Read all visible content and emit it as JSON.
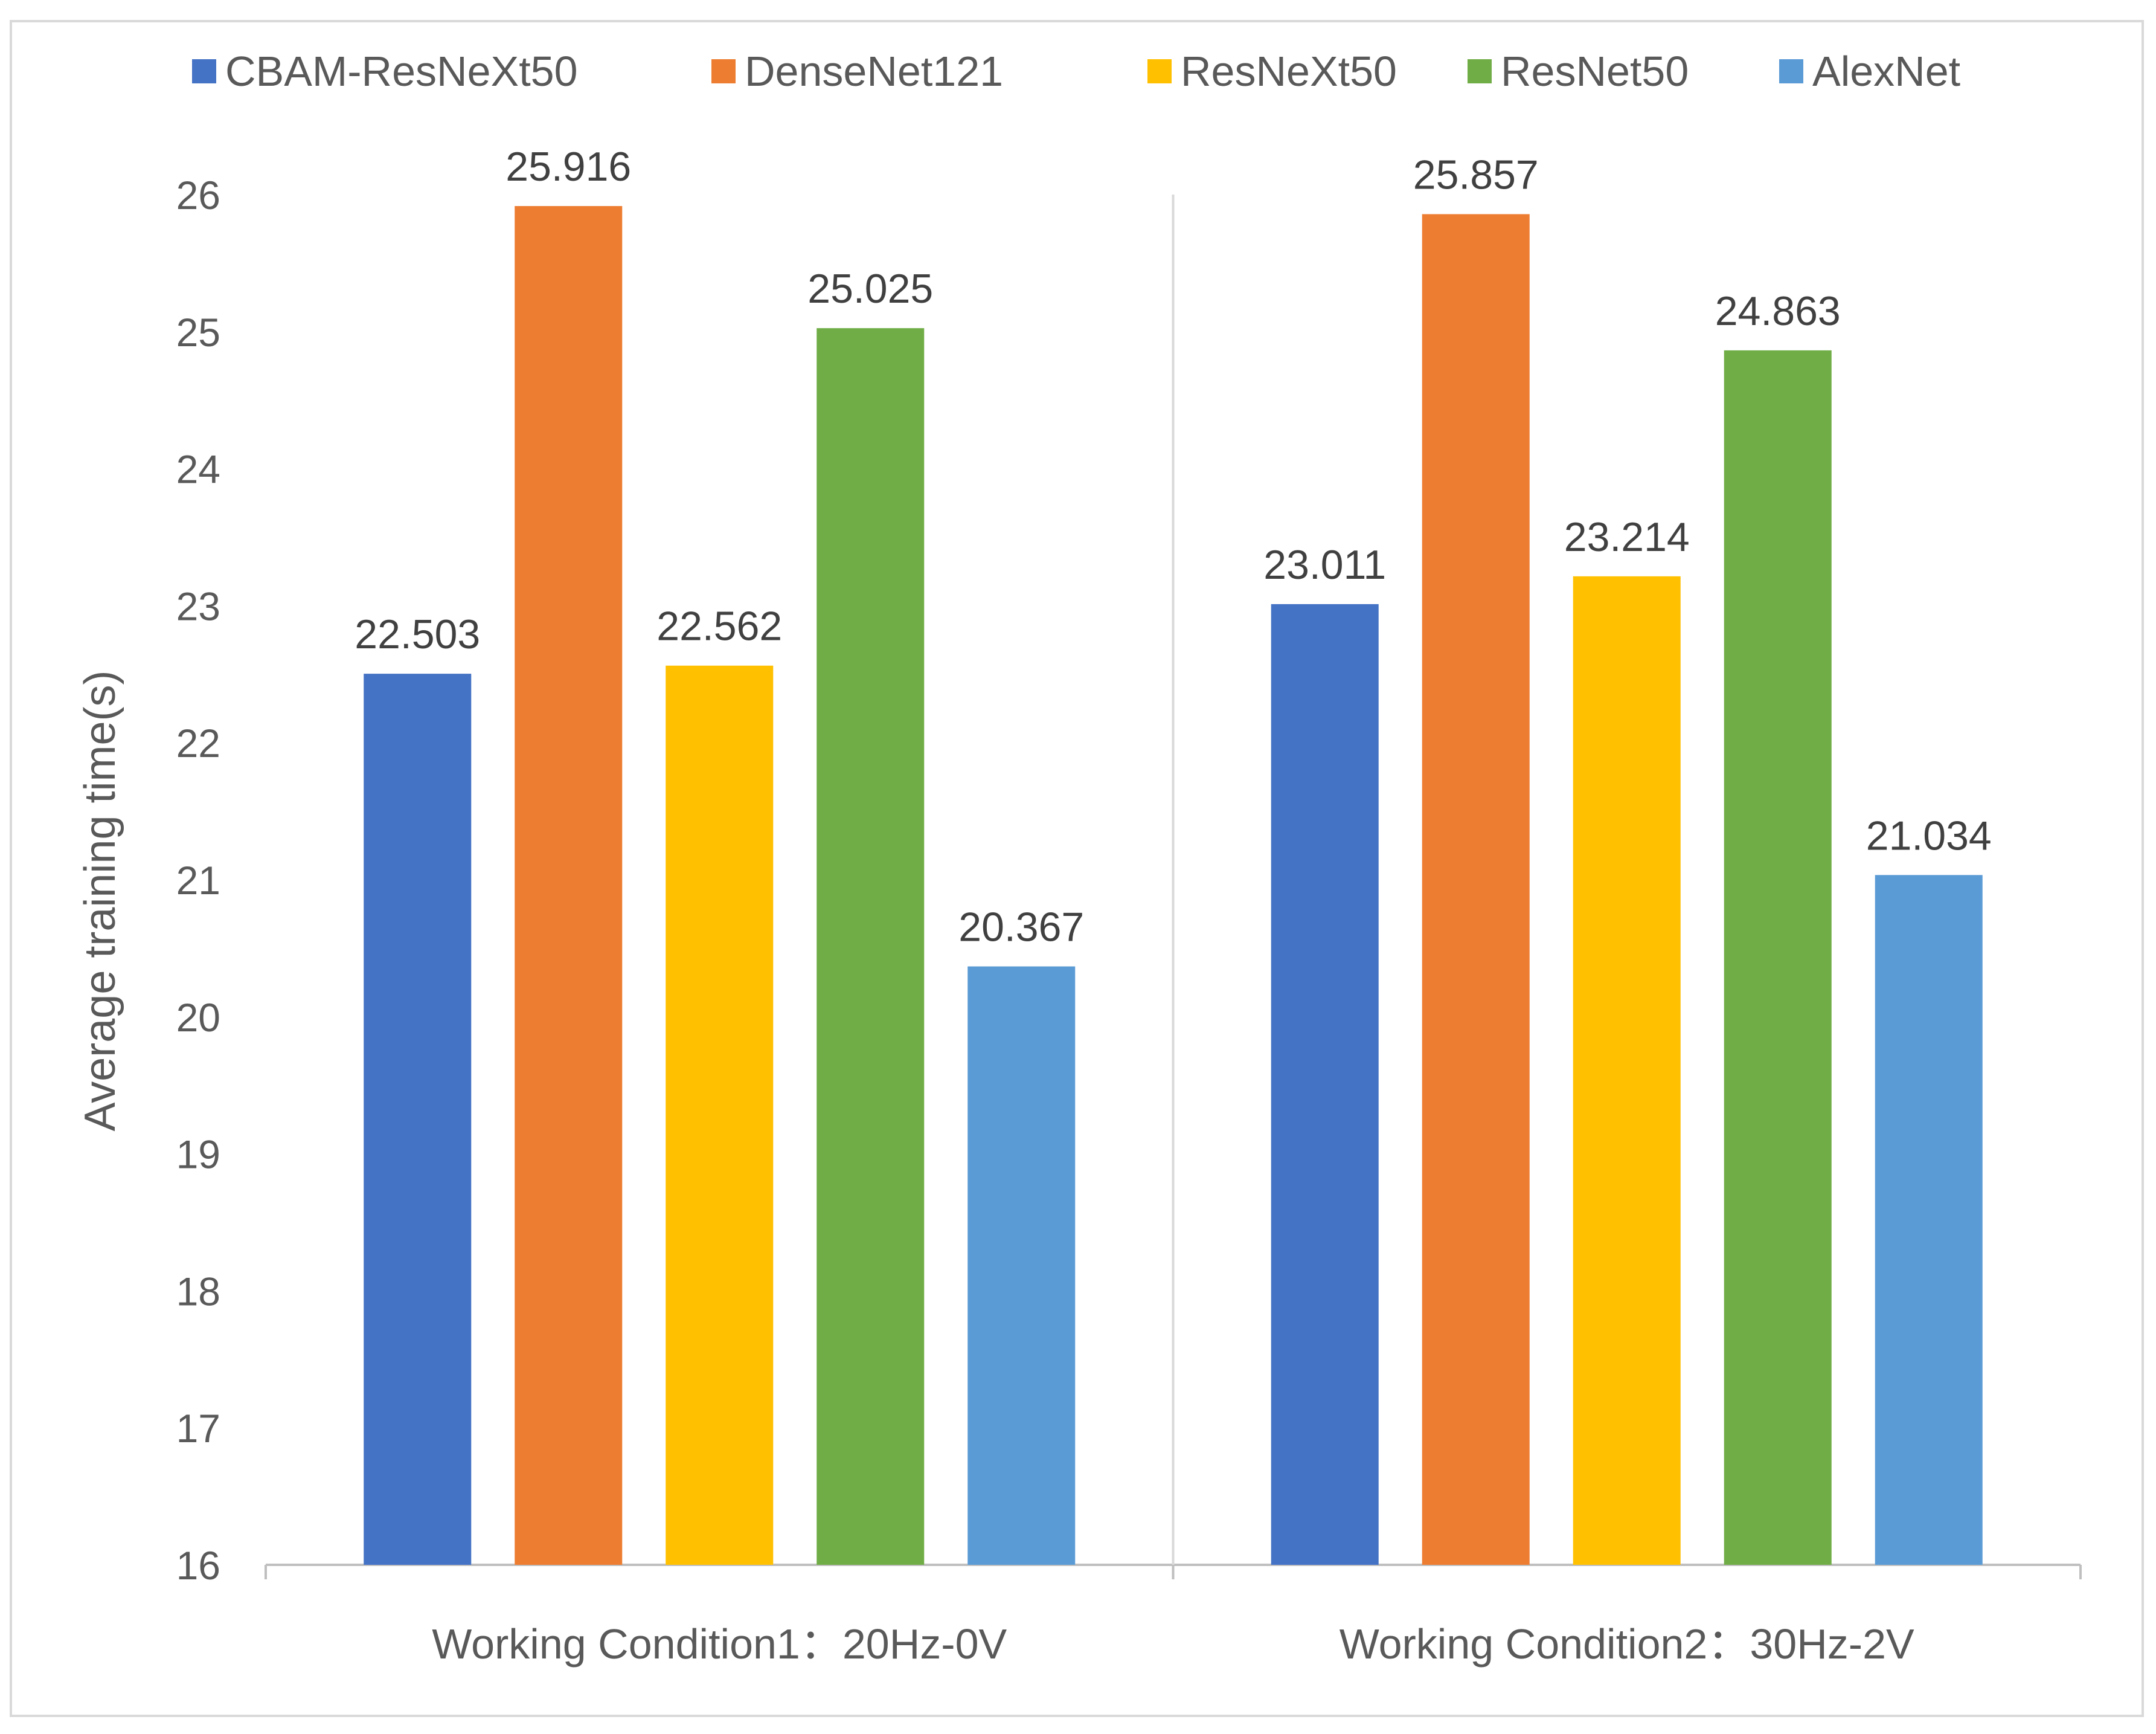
{
  "chart_data": {
    "type": "bar",
    "title": "",
    "xlabel": "",
    "ylabel": "Average training time(s)",
    "ylim": [
      16,
      26
    ],
    "yticks": [
      16,
      17,
      18,
      19,
      20,
      21,
      22,
      23,
      24,
      25,
      26
    ],
    "grid": false,
    "legend_position": "top",
    "categories": [
      "Working Condition1：20Hz-0V",
      "Working Condition2：30Hz-2V"
    ],
    "series": [
      {
        "name": "CBAM-ResNeXt50",
        "color": "#4472C4",
        "values": [
          22.503,
          23.011
        ],
        "labels": [
          "22.503",
          "23.011"
        ]
      },
      {
        "name": "DenseNet121",
        "color": "#ED7D31",
        "values": [
          25.916,
          25.857
        ],
        "labels": [
          "25.916",
          "25.857"
        ]
      },
      {
        "name": "ResNeXt50",
        "color": "#FFC000",
        "values": [
          22.562,
          23.214
        ],
        "labels": [
          "22.562",
          "23.214"
        ]
      },
      {
        "name": "ResNet50",
        "color": "#70AD47",
        "values": [
          25.025,
          24.863
        ],
        "labels": [
          "25.025",
          "24.863"
        ]
      },
      {
        "name": "AlexNet",
        "color": "#5B9BD5",
        "values": [
          20.367,
          21.034
        ],
        "labels": [
          "20.367",
          "21.034"
        ]
      }
    ]
  }
}
